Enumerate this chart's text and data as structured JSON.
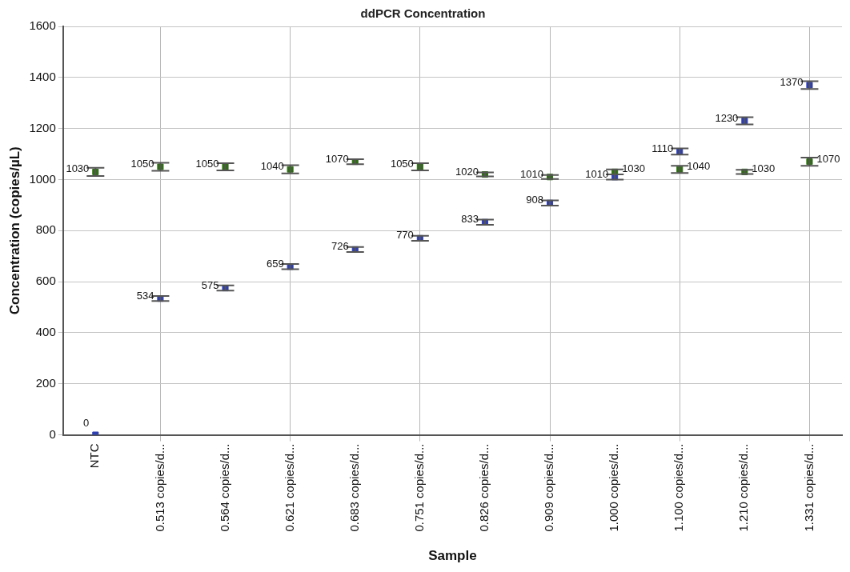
{
  "chart_data": {
    "type": "scatter",
    "title": "ddPCR Concentration",
    "xlabel": "Sample",
    "ylabel": "Concentration (copies/µL)",
    "categories": [
      "NTC",
      "0.513 copies/d...",
      "0.564 copies/d...",
      "0.621 copies/d...",
      "0.683 copies/d...",
      "0.751 copies/d...",
      "0.826 copies/d...",
      "0.909 copies/d...",
      "1.000 copies/d...",
      "1.100 copies/d...",
      "1.210 copies/d...",
      "1.331 copies/d..."
    ],
    "series": [
      {
        "color": "#2f3fb0",
        "values": [
          0,
          534,
          575,
          659,
          726,
          770,
          833,
          908,
          1010,
          1110,
          1230,
          1370
        ],
        "errors": [
          null,
          10,
          10,
          10,
          10,
          10,
          10,
          10,
          10,
          12,
          14,
          15
        ]
      },
      {
        "color": "#2e6e12",
        "values": [
          1030,
          1050,
          1050,
          1040,
          1070,
          1050,
          1020,
          1010,
          1030,
          1040,
          1030,
          1070
        ],
        "errors": [
          16,
          16,
          14,
          16,
          10,
          14,
          8,
          8,
          10,
          14,
          8,
          16
        ]
      }
    ],
    "ylim": [
      0,
      1600
    ],
    "yticks": [
      0,
      200,
      400,
      600,
      800,
      1000,
      1200,
      1400,
      1600
    ],
    "grid": true,
    "marker": "square",
    "data_labels": true,
    "legend": false
  }
}
